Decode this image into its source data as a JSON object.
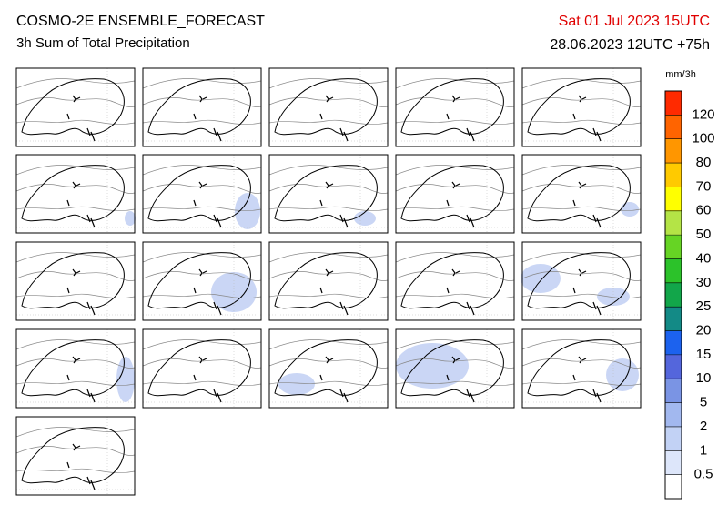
{
  "header": {
    "title": "COSMO-2E ENSEMBLE_FORECAST",
    "subtitle": "3h Sum of Total Precipitation",
    "valid_time": "Sat 01 Jul 2023 15UTC",
    "run_info": "28.06.2023 12UTC +75h"
  },
  "colorbar": {
    "unit": "mm/3h",
    "levels": [
      0.5,
      1,
      2,
      5,
      10,
      15,
      20,
      25,
      30,
      40,
      50,
      60,
      70,
      80,
      100,
      120
    ],
    "colors": [
      "#ffffff",
      "#dde6fa",
      "#c2d2f5",
      "#a2b8ef",
      "#7a94e4",
      "#5466dc",
      "#1c62ee",
      "#138a86",
      "#12a64a",
      "#2cc22a",
      "#66d424",
      "#b4e446",
      "#ffff00",
      "#ffca00",
      "#ff9600",
      "#ff6400",
      "#ff2a00"
    ]
  }
}
